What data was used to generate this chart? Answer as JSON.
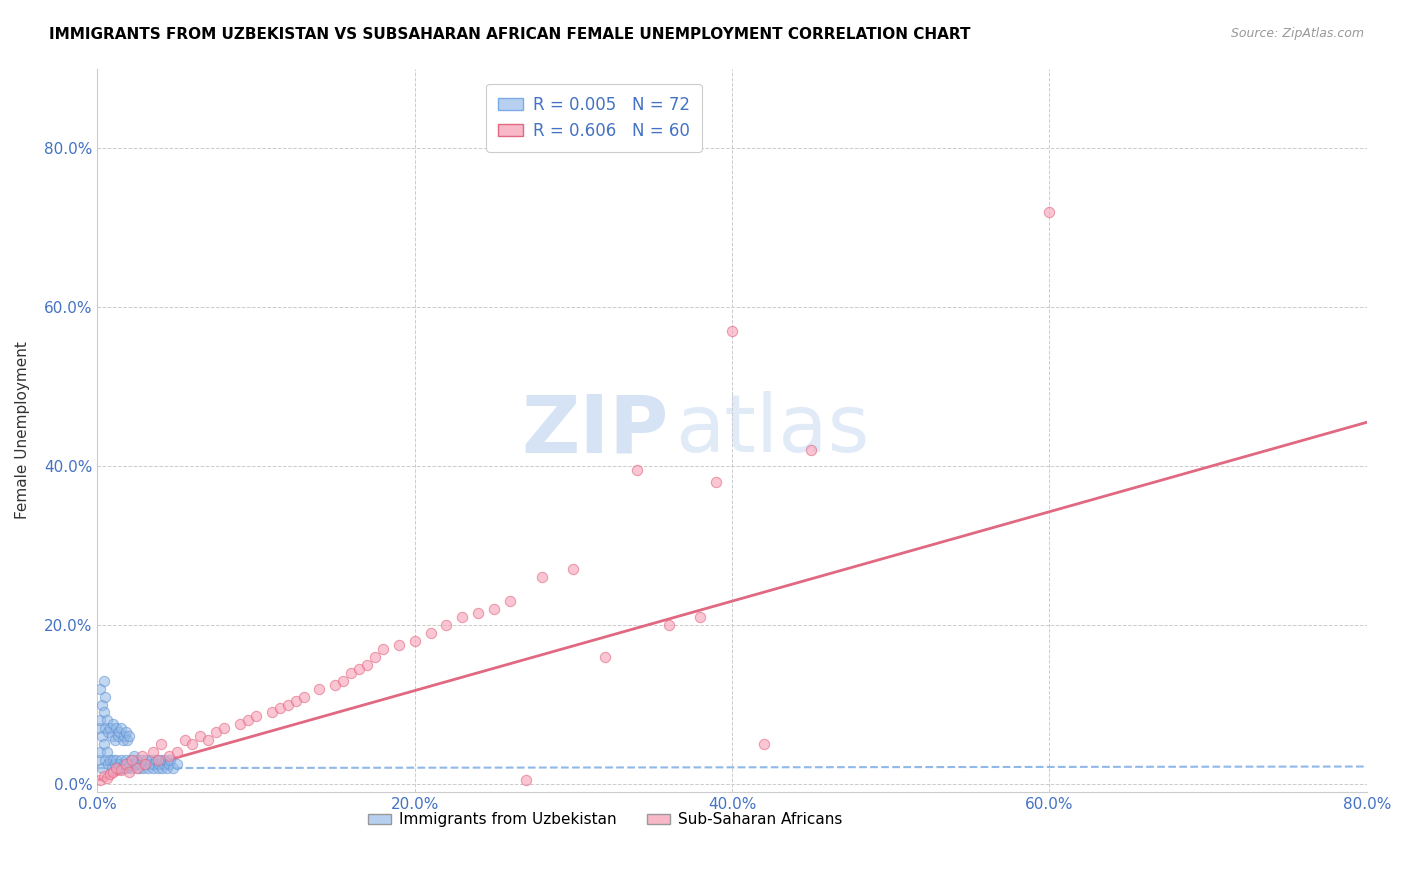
{
  "title": "IMMIGRANTS FROM UZBEKISTAN VS SUBSAHARAN AFRICAN FEMALE UNEMPLOYMENT CORRELATION CHART",
  "source": "Source: ZipAtlas.com",
  "ylabel": "Female Unemployment",
  "xlabel": "",
  "xlim": [
    0.0,
    0.8
  ],
  "ylim": [
    -0.01,
    0.9
  ],
  "yticks": [
    0.0,
    0.2,
    0.4,
    0.6,
    0.8
  ],
  "xticks": [
    0.0,
    0.2,
    0.4,
    0.6,
    0.8
  ],
  "watermark_zip": "ZIP",
  "watermark_atlas": "atlas",
  "legend_entries": [
    {
      "label_r": "R = 0.005",
      "label_n": "N = 72",
      "color": "#b8d0f0"
    },
    {
      "label_r": "R = 0.606",
      "label_n": "N = 60",
      "color": "#f8b8c8"
    }
  ],
  "bottom_legend": [
    {
      "label": "Immigrants from Uzbekistan",
      "color": "#b8d0f0"
    },
    {
      "label": "Sub-Saharan Africans",
      "color": "#f8b8c8"
    }
  ],
  "uzbek_scatter": {
    "x": [
      0.001,
      0.001,
      0.002,
      0.002,
      0.002,
      0.003,
      0.003,
      0.003,
      0.004,
      0.004,
      0.004,
      0.005,
      0.005,
      0.005,
      0.006,
      0.006,
      0.007,
      0.007,
      0.008,
      0.008,
      0.009,
      0.009,
      0.01,
      0.01,
      0.011,
      0.011,
      0.012,
      0.012,
      0.013,
      0.013,
      0.014,
      0.014,
      0.015,
      0.015,
      0.016,
      0.016,
      0.017,
      0.017,
      0.018,
      0.018,
      0.019,
      0.019,
      0.02,
      0.02,
      0.021,
      0.022,
      0.023,
      0.024,
      0.025,
      0.026,
      0.027,
      0.028,
      0.029,
      0.03,
      0.031,
      0.032,
      0.033,
      0.034,
      0.035,
      0.036,
      0.037,
      0.038,
      0.039,
      0.04,
      0.041,
      0.042,
      0.043,
      0.044,
      0.045,
      0.046,
      0.048,
      0.05
    ],
    "y": [
      0.03,
      0.07,
      0.04,
      0.08,
      0.12,
      0.02,
      0.06,
      0.1,
      0.05,
      0.09,
      0.13,
      0.03,
      0.07,
      0.11,
      0.04,
      0.08,
      0.025,
      0.065,
      0.03,
      0.07,
      0.02,
      0.06,
      0.03,
      0.075,
      0.025,
      0.055,
      0.03,
      0.07,
      0.02,
      0.06,
      0.025,
      0.065,
      0.03,
      0.07,
      0.02,
      0.055,
      0.025,
      0.06,
      0.03,
      0.065,
      0.02,
      0.055,
      0.025,
      0.06,
      0.03,
      0.02,
      0.035,
      0.025,
      0.03,
      0.02,
      0.025,
      0.03,
      0.02,
      0.025,
      0.03,
      0.02,
      0.025,
      0.03,
      0.02,
      0.025,
      0.03,
      0.02,
      0.025,
      0.03,
      0.02,
      0.025,
      0.03,
      0.02,
      0.025,
      0.03,
      0.02,
      0.025
    ],
    "color": "#90b8e8",
    "edge_color": "#6090d0",
    "size": 55,
    "alpha": 0.55
  },
  "subsaharan_scatter": {
    "x": [
      0.002,
      0.004,
      0.006,
      0.008,
      0.01,
      0.012,
      0.015,
      0.018,
      0.02,
      0.022,
      0.025,
      0.028,
      0.03,
      0.035,
      0.038,
      0.04,
      0.045,
      0.05,
      0.055,
      0.06,
      0.065,
      0.07,
      0.075,
      0.08,
      0.09,
      0.095,
      0.1,
      0.11,
      0.115,
      0.12,
      0.125,
      0.13,
      0.14,
      0.15,
      0.155,
      0.16,
      0.165,
      0.17,
      0.175,
      0.18,
      0.19,
      0.2,
      0.21,
      0.22,
      0.23,
      0.24,
      0.25,
      0.26,
      0.27,
      0.28,
      0.3,
      0.32,
      0.34,
      0.36,
      0.38,
      0.39,
      0.4,
      0.42,
      0.45,
      0.6
    ],
    "y": [
      0.005,
      0.01,
      0.008,
      0.012,
      0.015,
      0.02,
      0.018,
      0.025,
      0.015,
      0.03,
      0.02,
      0.035,
      0.025,
      0.04,
      0.03,
      0.05,
      0.035,
      0.04,
      0.055,
      0.05,
      0.06,
      0.055,
      0.065,
      0.07,
      0.075,
      0.08,
      0.085,
      0.09,
      0.095,
      0.1,
      0.105,
      0.11,
      0.12,
      0.125,
      0.13,
      0.14,
      0.145,
      0.15,
      0.16,
      0.17,
      0.175,
      0.18,
      0.19,
      0.2,
      0.21,
      0.215,
      0.22,
      0.23,
      0.005,
      0.26,
      0.27,
      0.16,
      0.395,
      0.2,
      0.21,
      0.38,
      0.57,
      0.05,
      0.42,
      0.72
    ],
    "color": "#f8a0b8",
    "edge_color": "#e06880",
    "size": 55,
    "alpha": 0.6
  },
  "uzbek_trend": {
    "x": [
      0.0,
      0.8
    ],
    "y": [
      0.02,
      0.022
    ],
    "color": "#90b8e8",
    "linestyle": "dashed",
    "linewidth": 1.5
  },
  "subsaharan_trend": {
    "x": [
      0.0,
      0.8
    ],
    "y": [
      0.005,
      0.455
    ],
    "color": "#e06880",
    "linestyle": "solid",
    "linewidth": 2.0
  },
  "grid_color": "#cccccc",
  "background_color": "#ffffff",
  "title_fontsize": 11,
  "tick_label_color": "#4472c4",
  "ylabel_color": "#333333"
}
